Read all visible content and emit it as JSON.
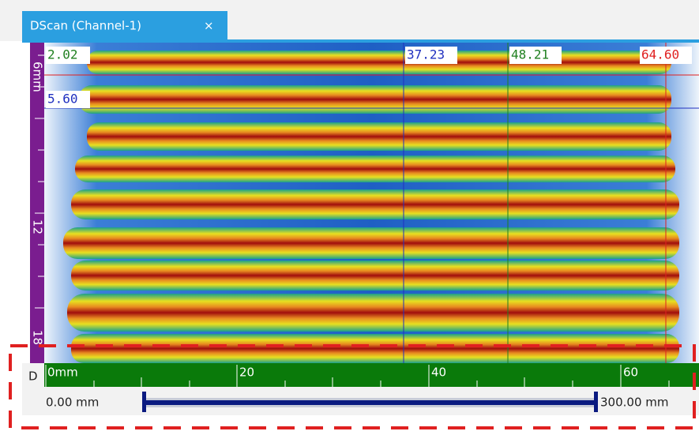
{
  "tab": {
    "title": "DScan (Channel-1)",
    "close": "×"
  },
  "cursors": {
    "green_left": "2.02",
    "blue_left": "5.60",
    "blue": "37.23",
    "green": "48.21",
    "red": "64.60"
  },
  "vertical_ruler": {
    "labels": [
      "6mm",
      "12",
      "18"
    ]
  },
  "horizontal_ruler": {
    "axis": "D",
    "labels": [
      "0mm",
      "20",
      "40",
      "60"
    ]
  },
  "range": {
    "start": "0.00 mm",
    "end": "300.00 mm"
  }
}
